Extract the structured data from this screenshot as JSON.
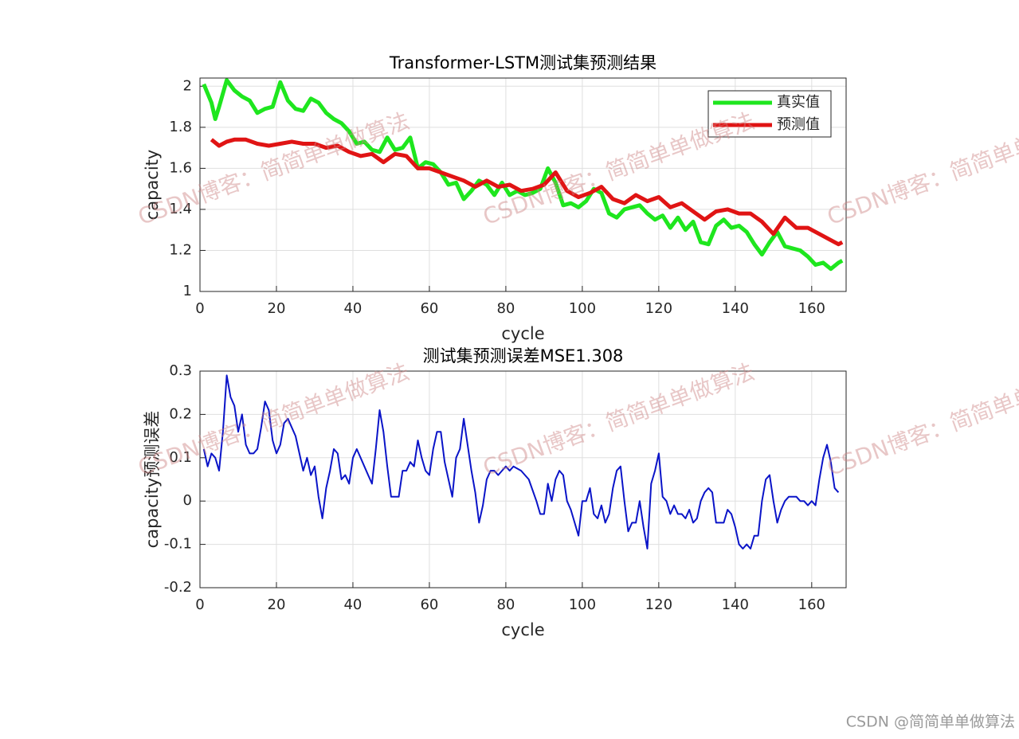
{
  "chart_data": [
    {
      "type": "line",
      "title": "Transformer-LSTM测试集预测结果",
      "xlabel": "cycle",
      "ylabel": "capacity",
      "xlim": [
        0,
        169
      ],
      "xticks": [
        0,
        20,
        40,
        60,
        80,
        100,
        120,
        140,
        160
      ],
      "ylim": [
        1,
        2.04
      ],
      "yticks": [
        1,
        1.2,
        1.4,
        1.6,
        1.8,
        2
      ],
      "grid": true,
      "legend": "upper right",
      "series": [
        {
          "name": "真实值",
          "color": "#1ee61e",
          "x": [
            1,
            3,
            4,
            5,
            7,
            9,
            11,
            13,
            15,
            17,
            19,
            21,
            23,
            25,
            27,
            29,
            31,
            33,
            35,
            37,
            39,
            41,
            43,
            45,
            47,
            49,
            51,
            53,
            55,
            57,
            59,
            61,
            63,
            65,
            67,
            69,
            71,
            73,
            75,
            77,
            79,
            81,
            83,
            85,
            87,
            89,
            91,
            93,
            95,
            97,
            99,
            101,
            103,
            105,
            107,
            109,
            111,
            113,
            115,
            117,
            119,
            121,
            123,
            125,
            127,
            129,
            131,
            133,
            135,
            137,
            139,
            141,
            143,
            145,
            147,
            149,
            151,
            153,
            155,
            157,
            159,
            161,
            163,
            165,
            167,
            168
          ],
          "values": [
            2.01,
            1.92,
            1.84,
            1.9,
            2.03,
            1.98,
            1.95,
            1.93,
            1.87,
            1.89,
            1.9,
            2.02,
            1.93,
            1.89,
            1.88,
            1.94,
            1.92,
            1.87,
            1.84,
            1.82,
            1.78,
            1.72,
            1.73,
            1.69,
            1.68,
            1.75,
            1.69,
            1.7,
            1.75,
            1.6,
            1.63,
            1.62,
            1.58,
            1.52,
            1.53,
            1.45,
            1.49,
            1.54,
            1.52,
            1.47,
            1.53,
            1.47,
            1.49,
            1.47,
            1.48,
            1.5,
            1.6,
            1.53,
            1.42,
            1.43,
            1.41,
            1.44,
            1.5,
            1.48,
            1.38,
            1.36,
            1.4,
            1.41,
            1.42,
            1.38,
            1.35,
            1.37,
            1.31,
            1.36,
            1.3,
            1.34,
            1.24,
            1.23,
            1.32,
            1.35,
            1.31,
            1.32,
            1.29,
            1.23,
            1.18,
            1.24,
            1.29,
            1.22,
            1.21,
            1.2,
            1.17,
            1.13,
            1.14,
            1.11,
            1.14,
            1.15
          ]
        },
        {
          "name": "预测值",
          "color": "#e01414",
          "x": [
            3,
            5,
            7,
            9,
            12,
            15,
            18,
            21,
            24,
            27,
            30,
            33,
            36,
            39,
            42,
            45,
            48,
            51,
            54,
            57,
            60,
            63,
            66,
            69,
            72,
            75,
            78,
            81,
            84,
            87,
            90,
            93,
            96,
            99,
            102,
            105,
            108,
            111,
            114,
            117,
            120,
            123,
            126,
            129,
            132,
            135,
            138,
            141,
            144,
            147,
            150,
            153,
            156,
            159,
            162,
            165,
            167,
            168
          ],
          "values": [
            1.74,
            1.71,
            1.73,
            1.74,
            1.74,
            1.72,
            1.71,
            1.72,
            1.73,
            1.72,
            1.72,
            1.7,
            1.71,
            1.68,
            1.66,
            1.67,
            1.63,
            1.67,
            1.66,
            1.6,
            1.6,
            1.58,
            1.56,
            1.54,
            1.51,
            1.54,
            1.51,
            1.52,
            1.49,
            1.5,
            1.52,
            1.58,
            1.49,
            1.46,
            1.48,
            1.51,
            1.45,
            1.43,
            1.47,
            1.44,
            1.46,
            1.41,
            1.43,
            1.39,
            1.35,
            1.39,
            1.4,
            1.38,
            1.38,
            1.34,
            1.28,
            1.36,
            1.31,
            1.31,
            1.28,
            1.25,
            1.23,
            1.24
          ]
        }
      ]
    },
    {
      "type": "line",
      "title": "测试集预测误差MSE1.308",
      "xlabel": "cycle",
      "ylabel": "capacity预测误差",
      "xlim": [
        0,
        169
      ],
      "xticks": [
        0,
        20,
        40,
        60,
        80,
        100,
        120,
        140,
        160
      ],
      "ylim": [
        -0.2,
        0.3
      ],
      "yticks": [
        -0.2,
        -0.1,
        0,
        0.1,
        0.2,
        0.3
      ],
      "grid": true,
      "color": "#0a14c8",
      "x": [
        1,
        2,
        3,
        4,
        5,
        6,
        7,
        8,
        9,
        10,
        11,
        12,
        13,
        14,
        15,
        16,
        17,
        18,
        19,
        20,
        21,
        22,
        23,
        25,
        27,
        28,
        29,
        30,
        31,
        32,
        33,
        34,
        35,
        36,
        37,
        38,
        39,
        40,
        41,
        42,
        44,
        45,
        46,
        47,
        48,
        49,
        50,
        51,
        52,
        53,
        54,
        55,
        56,
        57,
        58,
        59,
        60,
        61,
        62,
        63,
        64,
        65,
        66,
        67,
        68,
        69,
        70,
        71,
        72,
        73,
        74,
        75,
        76,
        77,
        78,
        79,
        80,
        81,
        82,
        84,
        86,
        88,
        89,
        90,
        91,
        92,
        93,
        94,
        95,
        96,
        97,
        98,
        99,
        100,
        101,
        102,
        103,
        104,
        105,
        106,
        107,
        108,
        109,
        110,
        111,
        112,
        113,
        114,
        115,
        116,
        117,
        118,
        119,
        120,
        121,
        122,
        123,
        124,
        125,
        126,
        127,
        128,
        129,
        130,
        131,
        132,
        133,
        134,
        135,
        136,
        137,
        138,
        139,
        140,
        141,
        142,
        143,
        144,
        145,
        146,
        147,
        148,
        149,
        150,
        151,
        152,
        153,
        154,
        155,
        156,
        157,
        158,
        159,
        160,
        161,
        162,
        163,
        164,
        165,
        166,
        167
      ],
      "values": [
        0.12,
        0.08,
        0.11,
        0.1,
        0.07,
        0.16,
        0.29,
        0.24,
        0.22,
        0.16,
        0.2,
        0.13,
        0.11,
        0.11,
        0.12,
        0.17,
        0.23,
        0.21,
        0.14,
        0.11,
        0.13,
        0.18,
        0.19,
        0.15,
        0.07,
        0.1,
        0.06,
        0.08,
        0.01,
        -0.04,
        0.03,
        0.07,
        0.12,
        0.11,
        0.05,
        0.06,
        0.04,
        0.1,
        0.12,
        0.1,
        0.06,
        0.04,
        0.12,
        0.21,
        0.16,
        0.08,
        0.01,
        0.01,
        0.01,
        0.07,
        0.07,
        0.09,
        0.08,
        0.14,
        0.1,
        0.07,
        0.06,
        0.12,
        0.16,
        0.16,
        0.09,
        0.05,
        0.01,
        0.1,
        0.12,
        0.19,
        0.13,
        0.07,
        0.02,
        -0.05,
        -0.01,
        0.05,
        0.07,
        0.07,
        0.06,
        0.07,
        0.08,
        0.07,
        0.08,
        0.07,
        0.05,
        0,
        -0.03,
        -0.03,
        0.04,
        0,
        0.05,
        0.07,
        0.06,
        0,
        -0.02,
        -0.05,
        -0.08,
        0,
        0,
        0.03,
        -0.03,
        -0.04,
        -0.01,
        -0.05,
        -0.03,
        0.03,
        0.07,
        0.08,
        0,
        -0.07,
        -0.05,
        -0.05,
        0,
        -0.06,
        -0.11,
        0.04,
        0.07,
        0.11,
        0.01,
        0,
        -0.03,
        -0.01,
        -0.03,
        -0.03,
        -0.04,
        -0.02,
        -0.05,
        -0.04,
        0,
        0.02,
        0.03,
        0.02,
        -0.05,
        -0.05,
        -0.05,
        -0.02,
        -0.03,
        -0.06,
        -0.1,
        -0.11,
        -0.1,
        -0.11,
        -0.08,
        -0.08,
        0,
        0.05,
        0.06,
        0,
        -0.05,
        -0.02,
        0,
        0.01,
        0.01,
        0.01,
        0,
        0,
        -0.01,
        0,
        -0.01,
        0.05,
        0.1,
        0.13,
        0.09,
        0.03,
        0.02
      ]
    }
  ],
  "watermark": {
    "text": "CSDN博客：简简单单做算法",
    "footer": "CSDN @简简单单做算法"
  }
}
